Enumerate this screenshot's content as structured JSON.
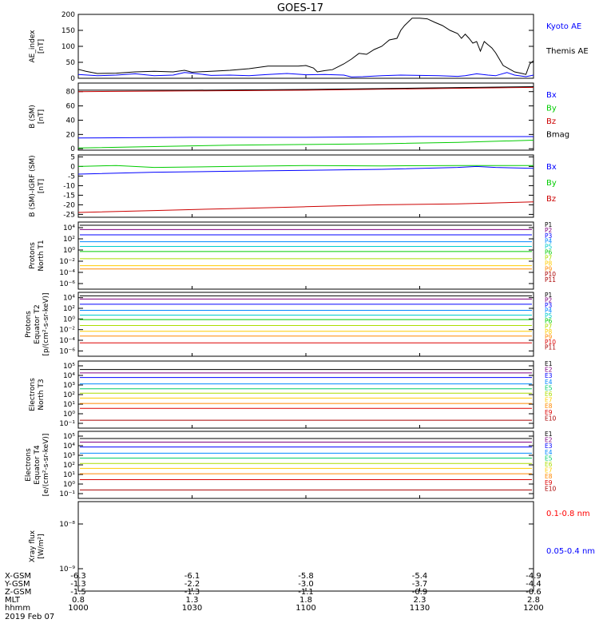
{
  "title": "GOES-17",
  "date_label": "2019 Feb 07",
  "footer": {
    "row_labels": [
      "X-GSM",
      "Y-GSM",
      "Z-GSM",
      "MLT",
      "hhmm"
    ],
    "columns": [
      {
        "time": "1000",
        "values": [
          "-6.3",
          "-1.3",
          "-1.5",
          "0.8",
          "1000"
        ]
      },
      {
        "time": "1030",
        "values": [
          "-6.1",
          "-2.2",
          "-1.3",
          "1.3",
          "1030"
        ]
      },
      {
        "time": "1100",
        "values": [
          "-5.8",
          "-3.0",
          "-1.1",
          "1.8",
          "1100"
        ]
      },
      {
        "time": "1130",
        "values": [
          "-5.4",
          "-3.7",
          "-0.9",
          "2.3",
          "1130"
        ]
      },
      {
        "time": "1200",
        "values": [
          "-4.9",
          "-4.4",
          "-0.6",
          "2.8",
          "1200"
        ]
      }
    ]
  },
  "chart_data": [
    {
      "type": "line",
      "id": "ae",
      "ylabel": [
        "AE_index",
        "[nT]"
      ],
      "ylim": [
        0,
        200
      ],
      "yscale": "linear",
      "yticks": [
        0,
        50,
        100,
        150,
        200
      ],
      "x": [
        "1000",
        "1200"
      ],
      "series": [
        {
          "name": "Kyoto AE",
          "color": "#0000ff",
          "points": [
            [
              0,
              12
            ],
            [
              5,
              8
            ],
            [
              10,
              10
            ],
            [
              15,
              14
            ],
            [
              20,
              8
            ],
            [
              25,
              10
            ],
            [
              28,
              18
            ],
            [
              30,
              16
            ],
            [
              35,
              9
            ],
            [
              40,
              10
            ],
            [
              45,
              8
            ],
            [
              50,
              12
            ],
            [
              55,
              15
            ],
            [
              60,
              11
            ],
            [
              65,
              12
            ],
            [
              70,
              10
            ],
            [
              72,
              4
            ],
            [
              75,
              5
            ],
            [
              80,
              8
            ],
            [
              85,
              10
            ],
            [
              90,
              9
            ],
            [
              95,
              8
            ],
            [
              100,
              6
            ],
            [
              102,
              8
            ],
            [
              105,
              14
            ],
            [
              108,
              10
            ],
            [
              110,
              8
            ],
            [
              113,
              18
            ],
            [
              115,
              10
            ],
            [
              118,
              5
            ],
            [
              120,
              10
            ]
          ]
        },
        {
          "name": "Themis AE",
          "color": "#000000",
          "points": [
            [
              0,
              28
            ],
            [
              2,
              22
            ],
            [
              5,
              15
            ],
            [
              10,
              16
            ],
            [
              15,
              20
            ],
            [
              20,
              22
            ],
            [
              25,
              20
            ],
            [
              28,
              25
            ],
            [
              30,
              19
            ],
            [
              35,
              22
            ],
            [
              40,
              25
            ],
            [
              45,
              30
            ],
            [
              50,
              38
            ],
            [
              55,
              38
            ],
            [
              58,
              38
            ],
            [
              60,
              40
            ],
            [
              62,
              32
            ],
            [
              63,
              20
            ],
            [
              65,
              24
            ],
            [
              67,
              27
            ],
            [
              70,
              45
            ],
            [
              72,
              60
            ],
            [
              74,
              78
            ],
            [
              76,
              75
            ],
            [
              78,
              90
            ],
            [
              80,
              100
            ],
            [
              82,
              120
            ],
            [
              84,
              125
            ],
            [
              85,
              150
            ],
            [
              86,
              165
            ],
            [
              88,
              188
            ],
            [
              90,
              188
            ],
            [
              92,
              186
            ],
            [
              94,
              175
            ],
            [
              96,
              165
            ],
            [
              98,
              150
            ],
            [
              100,
              140
            ],
            [
              101,
              125
            ],
            [
              102,
              138
            ],
            [
              103,
              125
            ],
            [
              104,
              110
            ],
            [
              105,
              115
            ],
            [
              106,
              85
            ],
            [
              107,
              115
            ],
            [
              108,
              105
            ],
            [
              109,
              95
            ],
            [
              110,
              80
            ],
            [
              112,
              40
            ],
            [
              115,
              20
            ],
            [
              117,
              15
            ],
            [
              118,
              12
            ],
            [
              119,
              45
            ],
            [
              120,
              55
            ]
          ]
        }
      ]
    },
    {
      "type": "line",
      "id": "b_sm",
      "ylabel": [
        "B (SM)",
        "[nT]"
      ],
      "ylim": [
        -2,
        92
      ],
      "yscale": "linear",
      "yticks": [
        0,
        20,
        40,
        60,
        80
      ],
      "x": [
        "1000",
        "1200"
      ],
      "series": [
        {
          "name": "Bx",
          "color": "#0000ff",
          "points": [
            [
              0,
              15
            ],
            [
              30,
              16
            ],
            [
              60,
              16
            ],
            [
              90,
              17
            ],
            [
              120,
              17
            ]
          ]
        },
        {
          "name": "By",
          "color": "#00cc00",
          "points": [
            [
              0,
              1
            ],
            [
              20,
              3
            ],
            [
              40,
              5
            ],
            [
              60,
              6
            ],
            [
              80,
              7
            ],
            [
              100,
              9
            ],
            [
              120,
              12
            ]
          ]
        },
        {
          "name": "Bz",
          "color": "#cc0000",
          "points": [
            [
              0,
              80
            ],
            [
              30,
              81
            ],
            [
              60,
              82
            ],
            [
              90,
              84
            ],
            [
              120,
              86
            ]
          ]
        },
        {
          "name": "Bmag",
          "color": "#000000",
          "points": [
            [
              0,
              82
            ],
            [
              30,
              82
            ],
            [
              60,
              83
            ],
            [
              90,
              85
            ],
            [
              120,
              87
            ]
          ]
        }
      ]
    },
    {
      "type": "line",
      "id": "b_igrf",
      "ylabel": [
        "B (SM)-IGRF (SM)",
        "[nT]"
      ],
      "ylim": [
        -26.5,
        6
      ],
      "yscale": "linear",
      "yticks": [
        -25,
        -20,
        -15,
        -10,
        -5,
        0,
        5
      ],
      "x": [
        "1000",
        "1200"
      ],
      "series": [
        {
          "name": "Bx",
          "color": "#0000ff",
          "points": [
            [
              0,
              -4
            ],
            [
              20,
              -3
            ],
            [
              40,
              -2.5
            ],
            [
              60,
              -2
            ],
            [
              80,
              -1.5
            ],
            [
              100,
              -0.5
            ],
            [
              105,
              0
            ],
            [
              110,
              -0.5
            ],
            [
              120,
              -1
            ]
          ]
        },
        {
          "name": "By",
          "color": "#00cc00",
          "points": [
            [
              0,
              0
            ],
            [
              10,
              0.5
            ],
            [
              20,
              -0.5
            ],
            [
              40,
              0
            ],
            [
              60,
              0.5
            ],
            [
              80,
              0.3
            ],
            [
              100,
              0.5
            ],
            [
              120,
              0.5
            ]
          ]
        },
        {
          "name": "Bz",
          "color": "#cc0000",
          "points": [
            [
              0,
              -24
            ],
            [
              20,
              -23
            ],
            [
              40,
              -22
            ],
            [
              60,
              -21
            ],
            [
              80,
              -20
            ],
            [
              100,
              -19.5
            ],
            [
              120,
              -18.5
            ]
          ]
        }
      ]
    },
    {
      "type": "line",
      "id": "protons_t1",
      "ylabel": [
        "Protons",
        "North T1"
      ],
      "ylim": [
        1e-07,
        10000
      ],
      "yscale": "log",
      "ytick_labels": [
        "10⁻⁶",
        "10⁻⁴",
        "10⁻²",
        "10⁰",
        "10²",
        "10⁴"
      ],
      "x": [
        "1000",
        "1200"
      ],
      "channels": [
        "P1",
        "P2",
        "P3",
        "P4",
        "P5",
        "P6",
        "P7",
        "P8",
        "P9",
        "P10",
        "P11"
      ],
      "series": [
        {
          "name": "P1",
          "color": "#000000",
          "level": 3000
        },
        {
          "name": "P2",
          "color": "#800080",
          "level": 600
        },
        {
          "name": "P3",
          "color": "#0000ff",
          "level": 80
        },
        {
          "name": "P4",
          "color": "#0088ff",
          "level": 6
        },
        {
          "name": "P5",
          "color": "#00cccc",
          "level": 1
        },
        {
          "name": "P6",
          "color": "#00cc00",
          "level": 0.15
        },
        {
          "name": "P7",
          "color": "#aadd00",
          "level": 0.01
        },
        {
          "name": "P8",
          "color": "#ffcc00",
          "level": 0.0007
        },
        {
          "name": "P9",
          "color": "#ff8800",
          "level": 0.0002
        }
      ]
    },
    {
      "type": "line",
      "id": "protons_t2",
      "ylabel": [
        "Protons",
        "Equator T2",
        "[p/(cm²-s-sr-keV)]"
      ],
      "ylim": [
        1e-07,
        10000
      ],
      "yscale": "log",
      "ytick_labels": [
        "10⁻⁶",
        "10⁻⁴",
        "10⁻²",
        "10⁰",
        "10²",
        "10⁴"
      ],
      "x": [
        "1000",
        "1200"
      ],
      "channels": [
        "P1",
        "P2",
        "P3",
        "P4",
        "P5",
        "P6",
        "P7",
        "P8",
        "P9",
        "P10",
        "P11"
      ],
      "series": [
        {
          "name": "P1",
          "color": "#000000",
          "level": 2500
        },
        {
          "name": "P2",
          "color": "#800080",
          "level": 700
        },
        {
          "name": "P3",
          "color": "#0000ff",
          "level": 90
        },
        {
          "name": "P4",
          "color": "#0088ff",
          "level": 8
        },
        {
          "name": "P5",
          "color": "#00cccc",
          "level": 1.2
        },
        {
          "name": "P6",
          "color": "#00cc00",
          "level": 0.2
        },
        {
          "name": "P7",
          "color": "#aadd00",
          "level": 0.02
        },
        {
          "name": "P8",
          "color": "#ffcc00",
          "level": 0.002
        },
        {
          "name": "P9",
          "color": "#ff8800",
          "level": 0.0003
        },
        {
          "name": "P10",
          "color": "#dd0000",
          "level": 2e-05
        }
      ]
    },
    {
      "type": "line",
      "id": "electrons_t3",
      "ylabel": [
        "Electrons",
        "North T3"
      ],
      "ylim": [
        0.06,
        200000
      ],
      "yscale": "log",
      "ytick_labels": [
        "10⁻¹",
        "10⁰",
        "10¹",
        "10²",
        "10³",
        "10⁴",
        "10⁵"
      ],
      "x": [
        "1000",
        "1200"
      ],
      "channels": [
        "E1",
        "E2",
        "E3",
        "E4",
        "E5",
        "E6",
        "E7",
        "E8",
        "E9",
        "E10"
      ],
      "series": [
        {
          "name": "E1",
          "color": "#000000",
          "level": 30000
        },
        {
          "name": "E2",
          "color": "#800080",
          "level": 14000
        },
        {
          "name": "E3",
          "color": "#0000ff",
          "level": 5000
        },
        {
          "name": "E4",
          "color": "#0088ff",
          "level": 1200
        },
        {
          "name": "E5",
          "color": "#00cc66",
          "level": 400
        },
        {
          "name": "E6",
          "color": "#aadd00",
          "level": 150
        },
        {
          "name": "E7",
          "color": "#ffcc00",
          "level": 50
        },
        {
          "name": "E8",
          "color": "#ff8800",
          "level": 15
        },
        {
          "name": "E9",
          "color": "#dd0000",
          "level": 5
        },
        {
          "name": "E10",
          "color": "#aa0000",
          "level": 0.35
        }
      ]
    },
    {
      "type": "line",
      "id": "electrons_t4",
      "ylabel": [
        "Electrons",
        "Equator T4",
        "[e/(cm²-s-sr-keV)]"
      ],
      "ylim": [
        0.06,
        200000
      ],
      "yscale": "log",
      "ytick_labels": [
        "10⁻¹",
        "10⁰",
        "10¹",
        "10²",
        "10³",
        "10⁴",
        "10⁵"
      ],
      "x": [
        "1000",
        "1200"
      ],
      "channels": [
        "E1",
        "E2",
        "E3",
        "E4",
        "E5",
        "E6",
        "E7",
        "E8",
        "E9",
        "E10"
      ],
      "series": [
        {
          "name": "E1",
          "color": "#000000",
          "level": 40000
        },
        {
          "name": "E2",
          "color": "#800080",
          "level": 18000
        },
        {
          "name": "E3",
          "color": "#0000ff",
          "level": 6000
        },
        {
          "name": "E4",
          "color": "#0088ff",
          "level": 1500
        },
        {
          "name": "E5",
          "color": "#00cc66",
          "level": 500
        },
        {
          "name": "E6",
          "color": "#aadd00",
          "level": 150
        },
        {
          "name": "E7",
          "color": "#ffcc00",
          "level": 50
        },
        {
          "name": "E8",
          "color": "#ff8800",
          "level": 15
        },
        {
          "name": "E9",
          "color": "#dd0000",
          "level": 4
        },
        {
          "name": "E10",
          "color": "#aa0000",
          "level": 0.4
        }
      ]
    },
    {
      "type": "line",
      "id": "xray",
      "ylabel": [
        "Xray flux",
        "[W/m²]"
      ],
      "ylim": [
        "10⁻⁹",
        "10⁻⁸"
      ],
      "yscale": "log",
      "ytick_labels": [
        "10⁻⁹",
        "10⁻⁸"
      ],
      "x": [
        "1000",
        "1200"
      ],
      "series": [
        {
          "name": "0.1-0.8 nm",
          "color": "#ff0000"
        },
        {
          "name": "0.05-0.4 nm",
          "color": "#0000ff"
        }
      ]
    }
  ]
}
